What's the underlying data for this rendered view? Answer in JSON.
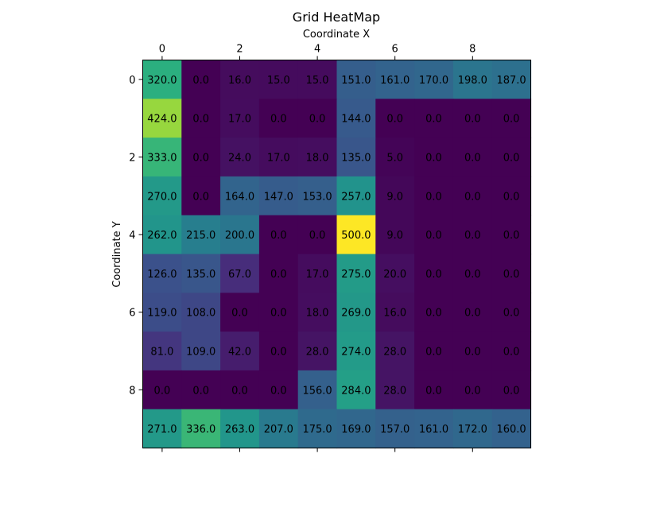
{
  "chart_data": {
    "type": "heatmap",
    "title": "Grid HeatMap",
    "xlabel": "Coordinate X",
    "ylabel": "Coordinate Y",
    "x_axis_position": "top",
    "x_ticks": [
      0,
      2,
      4,
      6,
      8
    ],
    "y_ticks": [
      0,
      2,
      4,
      6,
      8
    ],
    "colormap": "viridis",
    "vmin": 0,
    "vmax": 500,
    "grid": false,
    "value_format": "one-decimal",
    "values": [
      [
        320,
        0,
        16,
        15,
        15,
        151,
        161,
        170,
        198,
        187
      ],
      [
        424,
        0,
        17,
        0,
        0,
        144,
        0,
        0,
        0,
        0
      ],
      [
        333,
        0,
        24,
        17,
        18,
        135,
        5,
        0,
        0,
        0
      ],
      [
        270,
        0,
        164,
        147,
        153,
        257,
        9,
        0,
        0,
        0
      ],
      [
        262,
        215,
        200,
        0,
        0,
        500,
        9,
        0,
        0,
        0
      ],
      [
        126,
        135,
        67,
        0,
        17,
        275,
        20,
        0,
        0,
        0
      ],
      [
        119,
        108,
        0,
        0,
        18,
        269,
        16,
        0,
        0,
        0
      ],
      [
        81,
        109,
        42,
        0,
        28,
        274,
        28,
        0,
        0,
        0
      ],
      [
        0,
        0,
        0,
        0,
        156,
        284,
        28,
        0,
        0,
        0
      ],
      [
        271,
        336,
        263,
        207,
        175,
        169,
        157,
        161,
        172,
        160
      ]
    ]
  }
}
